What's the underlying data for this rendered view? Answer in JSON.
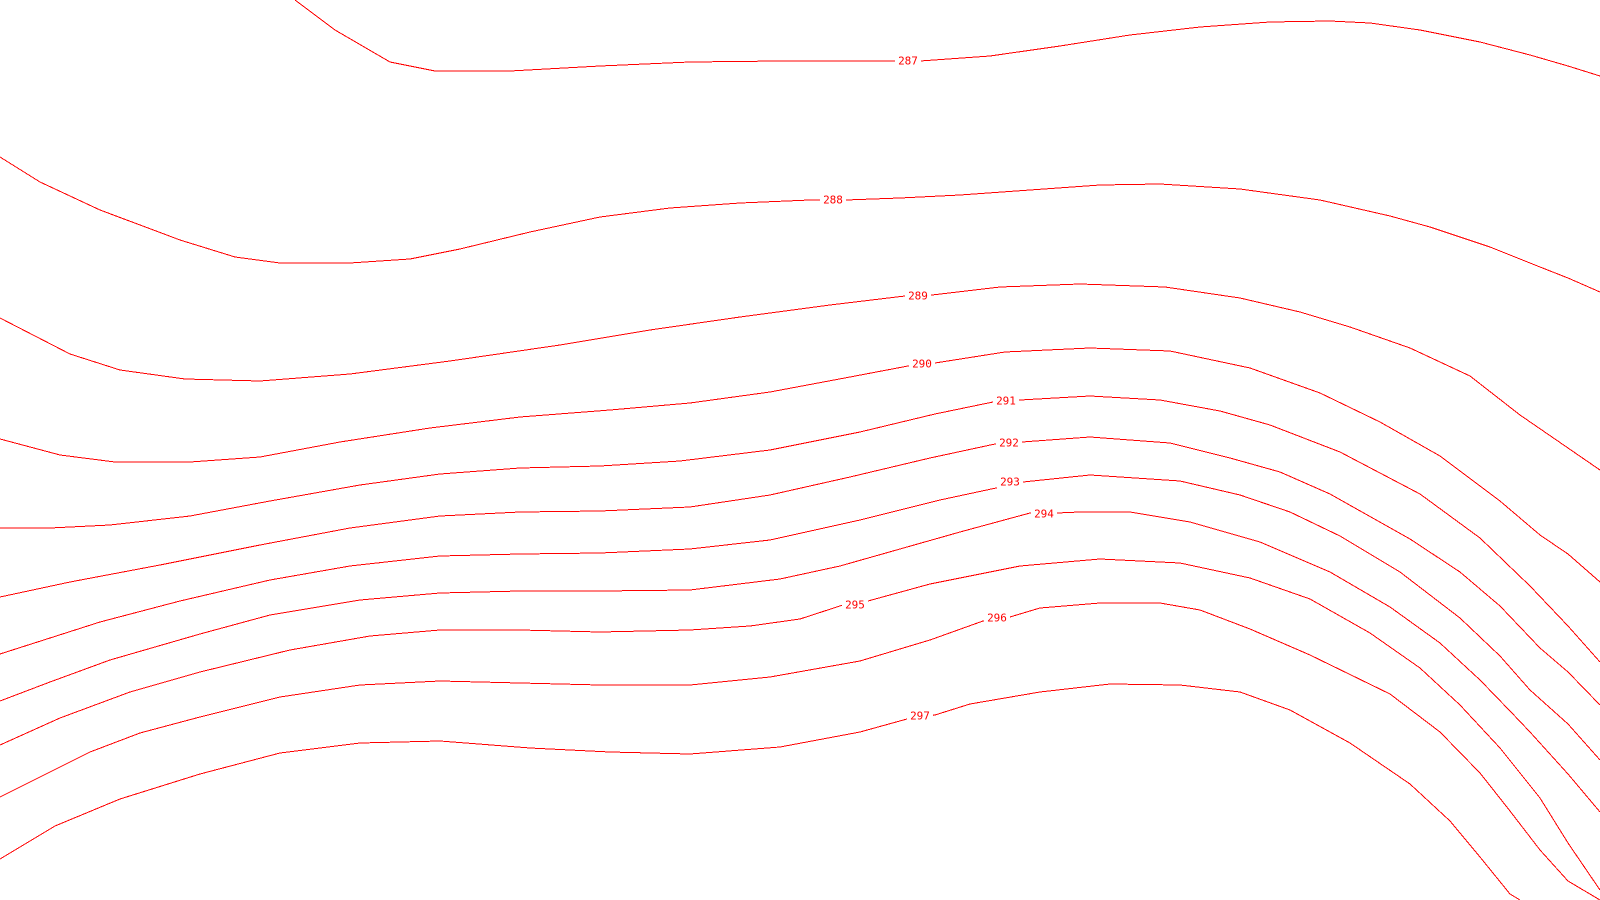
{
  "map": {
    "line_color": "#ff0000",
    "background_color": "#ffffff",
    "contours": [
      {
        "id": "c287",
        "value": "287"
      },
      {
        "id": "c288",
        "value": "288"
      },
      {
        "id": "c289",
        "value": "289"
      },
      {
        "id": "c290",
        "value": "290"
      },
      {
        "id": "c291",
        "value": "291"
      },
      {
        "id": "c292",
        "value": "292"
      },
      {
        "id": "c293",
        "value": "293"
      },
      {
        "id": "c294",
        "value": "294"
      },
      {
        "id": "c295",
        "value": "295"
      },
      {
        "id": "c296",
        "value": "296"
      },
      {
        "id": "c297",
        "value": "297"
      }
    ]
  }
}
